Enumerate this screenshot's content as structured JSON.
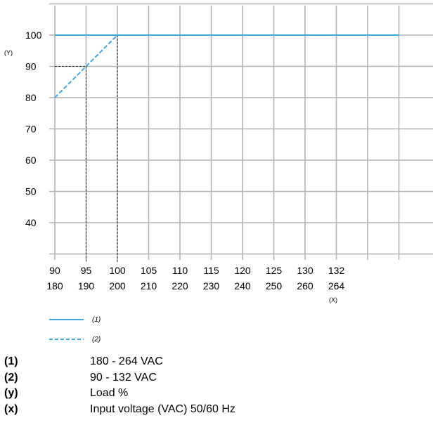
{
  "chart_data": {
    "type": "line",
    "x_tick_labels_top": [
      "90",
      "95",
      "100",
      "105",
      "110",
      "115",
      "120",
      "125",
      "130",
      "132"
    ],
    "x_tick_labels_bottom": [
      "180",
      "190",
      "200",
      "210",
      "220",
      "230",
      "240",
      "250",
      "260",
      "264"
    ],
    "x_axis_tag": "(X)",
    "y_axis_tag": "(Y)",
    "y_ticks": [
      40,
      50,
      60,
      70,
      80,
      90,
      100
    ],
    "ylim": [
      27,
      110
    ],
    "grid": true,
    "series": [
      {
        "name": "(1)",
        "style": "solid",
        "color": "#3fa9dc",
        "points": [
          [
            0,
            100
          ],
          [
            11,
            100
          ]
        ]
      },
      {
        "name": "(2)",
        "style": "dashed",
        "color": "#3fa9dc",
        "points": [
          [
            0,
            80
          ],
          [
            1,
            90
          ],
          [
            2,
            100
          ]
        ]
      }
    ],
    "reference_lines": [
      {
        "from": [
          0,
          90
        ],
        "to": [
          1,
          90
        ]
      },
      {
        "from": [
          1,
          90
        ],
        "to": [
          1,
          27
        ]
      },
      {
        "from": [
          2,
          100
        ],
        "to": [
          2,
          27
        ]
      }
    ],
    "legend_position": "bottom-left"
  },
  "notes": [
    {
      "key": "(1)",
      "text": "180 - 264 VAC"
    },
    {
      "key": "(2)",
      "text": "90 - 132 VAC"
    },
    {
      "key": "(y)",
      "text": "Load %"
    },
    {
      "key": "(x)",
      "text": "Input voltage (VAC) 50/60 Hz"
    }
  ]
}
